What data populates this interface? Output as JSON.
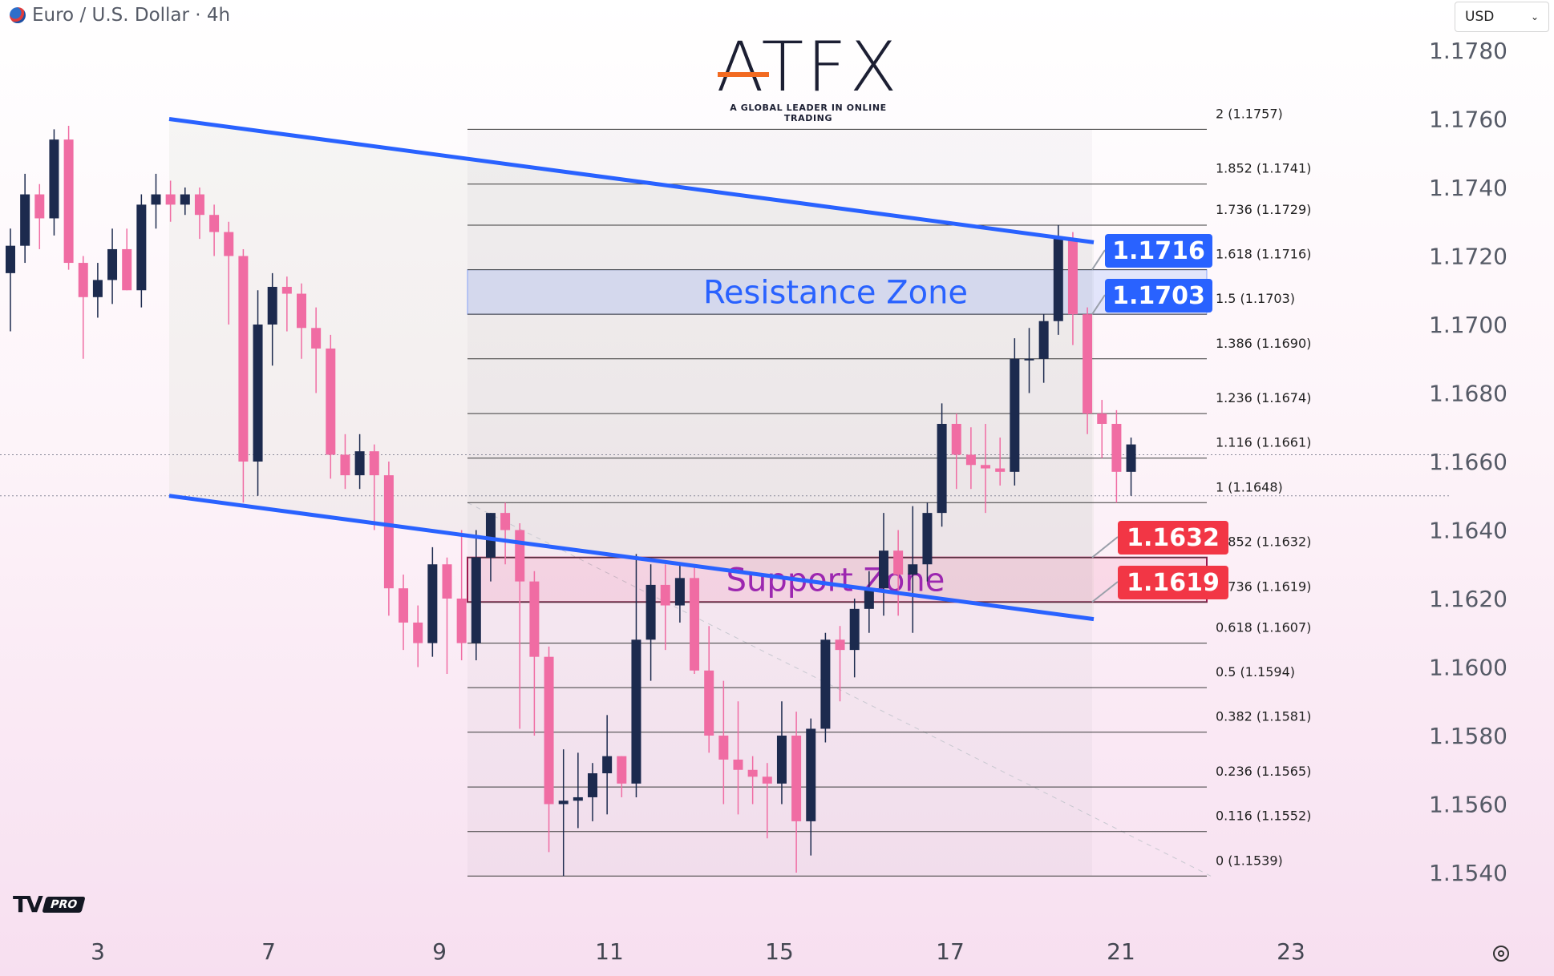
{
  "header": {
    "title": "Euro / U.S. Dollar · 4h",
    "currency": "USD"
  },
  "logo": {
    "name": "ATFX",
    "tagline": "A GLOBAL LEADER IN ONLINE TRADING"
  },
  "badge": "PRO",
  "chart_data": {
    "type": "candlestick",
    "symbol": "Euro / U.S. Dollar",
    "timeframe": "4h",
    "y_ticks": [
      "1.1540",
      "1.1560",
      "1.1580",
      "1.1600",
      "1.1620",
      "1.1640",
      "1.1660",
      "1.1680",
      "1.1700",
      "1.1720",
      "1.1740",
      "1.1760",
      "1.1780"
    ],
    "ylim": [
      1.1525,
      1.179
    ],
    "x_ticks": [
      "3",
      "7",
      "9",
      "11",
      "15",
      "17",
      "21",
      "23"
    ],
    "fib_levels": [
      {
        "ratio": "2",
        "price": 1.1757,
        "label": "2 (1.1757)"
      },
      {
        "ratio": "1.852",
        "price": 1.1741,
        "label": "1.852 (1.1741)"
      },
      {
        "ratio": "1.736",
        "price": 1.1729,
        "label": "1.736 (1.1729)"
      },
      {
        "ratio": "1.618",
        "price": 1.1716,
        "label": "1.618 (1.1716)"
      },
      {
        "ratio": "1.5",
        "price": 1.1703,
        "label": "1.5 (1.1703)"
      },
      {
        "ratio": "1.386",
        "price": 1.169,
        "label": "1.386 (1.1690)"
      },
      {
        "ratio": "1.236",
        "price": 1.1674,
        "label": "1.236 (1.1674)"
      },
      {
        "ratio": "1.116",
        "price": 1.1661,
        "label": "1.116 (1.1661)"
      },
      {
        "ratio": "1",
        "price": 1.1648,
        "label": "1 (1.1648)"
      },
      {
        "ratio": "0.852",
        "price": 1.1632,
        "label": "0.852 (1.1632)"
      },
      {
        "ratio": "0.736",
        "price": 1.1619,
        "label": "0.736 (1.1619)"
      },
      {
        "ratio": "0.618",
        "price": 1.1607,
        "label": "0.618 (1.1607)"
      },
      {
        "ratio": "0.5",
        "price": 1.1594,
        "label": "0.5 (1.1594)"
      },
      {
        "ratio": "0.382",
        "price": 1.1581,
        "label": "0.382 (1.1581)"
      },
      {
        "ratio": "0.236",
        "price": 1.1565,
        "label": "0.236 (1.1565)"
      },
      {
        "ratio": "0.116",
        "price": 1.1552,
        "label": "0.116 (1.1552)"
      },
      {
        "ratio": "0",
        "price": 1.1539,
        "label": "0 (1.1539)"
      }
    ],
    "zones": [
      {
        "name": "Resistance Zone",
        "from": 1.1703,
        "to": 1.1716,
        "color": "#2962ff"
      },
      {
        "name": "Support Zone",
        "from": 1.1619,
        "to": 1.1632,
        "color": "#9c1a4f"
      }
    ],
    "price_tags": [
      {
        "value": "1.1716",
        "price": 1.1716,
        "color": "#2962ff"
      },
      {
        "value": "1.1703",
        "price": 1.1703,
        "color": "#2962ff"
      },
      {
        "value": "1.1632",
        "price": 1.1632,
        "color": "#f23645"
      },
      {
        "value": "1.1619",
        "price": 1.1619,
        "color": "#f23645"
      }
    ],
    "channel": {
      "upper": [
        [
          0,
          1.176
        ],
        [
          38,
          1.1724
        ]
      ],
      "lower": [
        [
          0,
          1.165
        ],
        [
          38,
          1.1614
        ]
      ],
      "color": "#2962ff"
    },
    "colors": {
      "up": "#1c2a4e",
      "down": "#f06ca3"
    },
    "candles": [
      [
        1.1715,
        1.1728,
        1.1698,
        1.1723
      ],
      [
        1.1723,
        1.1744,
        1.1718,
        1.1738
      ],
      [
        1.1738,
        1.1741,
        1.1722,
        1.1731
      ],
      [
        1.1731,
        1.1757,
        1.1726,
        1.1754
      ],
      [
        1.1754,
        1.1758,
        1.1716,
        1.1718
      ],
      [
        1.1718,
        1.172,
        1.169,
        1.1708
      ],
      [
        1.1708,
        1.1718,
        1.1702,
        1.1713
      ],
      [
        1.1713,
        1.1728,
        1.1706,
        1.1722
      ],
      [
        1.1722,
        1.1728,
        1.171,
        1.171
      ],
      [
        1.171,
        1.1738,
        1.1705,
        1.1735
      ],
      [
        1.1735,
        1.1744,
        1.1728,
        1.1738
      ],
      [
        1.1738,
        1.1742,
        1.173,
        1.1735
      ],
      [
        1.1735,
        1.174,
        1.1732,
        1.1738
      ],
      [
        1.1738,
        1.174,
        1.1725,
        1.1732
      ],
      [
        1.1732,
        1.1735,
        1.172,
        1.1727
      ],
      [
        1.1727,
        1.173,
        1.17,
        1.172
      ],
      [
        1.172,
        1.1722,
        1.1648,
        1.166
      ],
      [
        1.166,
        1.171,
        1.165,
        1.17
      ],
      [
        1.17,
        1.1715,
        1.1688,
        1.1711
      ],
      [
        1.1711,
        1.1714,
        1.1698,
        1.1709
      ],
      [
        1.1709,
        1.1712,
        1.169,
        1.1699
      ],
      [
        1.1699,
        1.1705,
        1.168,
        1.1693
      ],
      [
        1.1693,
        1.1697,
        1.1655,
        1.1662
      ],
      [
        1.1662,
        1.1668,
        1.1652,
        1.1656
      ],
      [
        1.1656,
        1.1668,
        1.1652,
        1.1663
      ],
      [
        1.1663,
        1.1665,
        1.164,
        1.1656
      ],
      [
        1.1656,
        1.166,
        1.1615,
        1.1623
      ],
      [
        1.1623,
        1.1627,
        1.1605,
        1.1613
      ],
      [
        1.1613,
        1.1618,
        1.16,
        1.1607
      ],
      [
        1.1607,
        1.1635,
        1.1603,
        1.163
      ],
      [
        1.163,
        1.1632,
        1.1598,
        1.162
      ],
      [
        1.162,
        1.164,
        1.1602,
        1.1607
      ],
      [
        1.1607,
        1.164,
        1.1602,
        1.1632
      ],
      [
        1.1632,
        1.1645,
        1.1625,
        1.1645
      ],
      [
        1.1645,
        1.1648,
        1.163,
        1.164
      ],
      [
        1.164,
        1.1642,
        1.1582,
        1.1625
      ],
      [
        1.1625,
        1.1628,
        1.158,
        1.1603
      ],
      [
        1.1603,
        1.1606,
        1.1546,
        1.156
      ],
      [
        1.156,
        1.1576,
        1.1539,
        1.1561
      ],
      [
        1.1561,
        1.1575,
        1.1553,
        1.1562
      ],
      [
        1.1562,
        1.1572,
        1.1555,
        1.1569
      ],
      [
        1.1569,
        1.1586,
        1.1557,
        1.1574
      ],
      [
        1.1574,
        1.1574,
        1.1562,
        1.1566
      ],
      [
        1.1566,
        1.1633,
        1.1562,
        1.1608
      ],
      [
        1.1608,
        1.163,
        1.1596,
        1.1624
      ],
      [
        1.1624,
        1.163,
        1.1605,
        1.1618
      ],
      [
        1.1618,
        1.163,
        1.1613,
        1.1626
      ],
      [
        1.1626,
        1.163,
        1.1598,
        1.1599
      ],
      [
        1.1599,
        1.1612,
        1.1575,
        1.158
      ],
      [
        1.158,
        1.1596,
        1.156,
        1.1573
      ],
      [
        1.1573,
        1.159,
        1.1557,
        1.157
      ],
      [
        1.157,
        1.1574,
        1.156,
        1.1568
      ],
      [
        1.1568,
        1.1572,
        1.155,
        1.1566
      ],
      [
        1.1566,
        1.159,
        1.156,
        1.158
      ],
      [
        1.158,
        1.1587,
        1.154,
        1.1555
      ],
      [
        1.1555,
        1.1585,
        1.1545,
        1.1582
      ],
      [
        1.1582,
        1.161,
        1.1578,
        1.1608
      ],
      [
        1.1608,
        1.1612,
        1.159,
        1.1605
      ],
      [
        1.1605,
        1.162,
        1.1597,
        1.1617
      ],
      [
        1.1617,
        1.1628,
        1.161,
        1.1623
      ],
      [
        1.1623,
        1.1645,
        1.1615,
        1.1634
      ],
      [
        1.1634,
        1.164,
        1.1615,
        1.1627
      ],
      [
        1.1627,
        1.1647,
        1.161,
        1.163
      ],
      [
        1.163,
        1.1648,
        1.1625,
        1.1645
      ],
      [
        1.1645,
        1.1677,
        1.1641,
        1.1671
      ],
      [
        1.1671,
        1.1674,
        1.1652,
        1.1662
      ],
      [
        1.1662,
        1.167,
        1.1652,
        1.1659
      ],
      [
        1.1659,
        1.1671,
        1.1645,
        1.1658
      ],
      [
        1.1658,
        1.1667,
        1.1653,
        1.1657
      ],
      [
        1.1657,
        1.1696,
        1.1653,
        1.169
      ],
      [
        1.169,
        1.1699,
        1.168,
        1.169
      ],
      [
        1.169,
        1.1703,
        1.1683,
        1.1701
      ],
      [
        1.1701,
        1.1729,
        1.1697,
        1.1725
      ],
      [
        1.1725,
        1.1727,
        1.1694,
        1.1703
      ],
      [
        1.1703,
        1.1705,
        1.1668,
        1.1674
      ],
      [
        1.1674,
        1.1678,
        1.1661,
        1.1671
      ],
      [
        1.1671,
        1.1675,
        1.1648,
        1.1657
      ],
      [
        1.1657,
        1.1667,
        1.165,
        1.1665
      ]
    ]
  }
}
